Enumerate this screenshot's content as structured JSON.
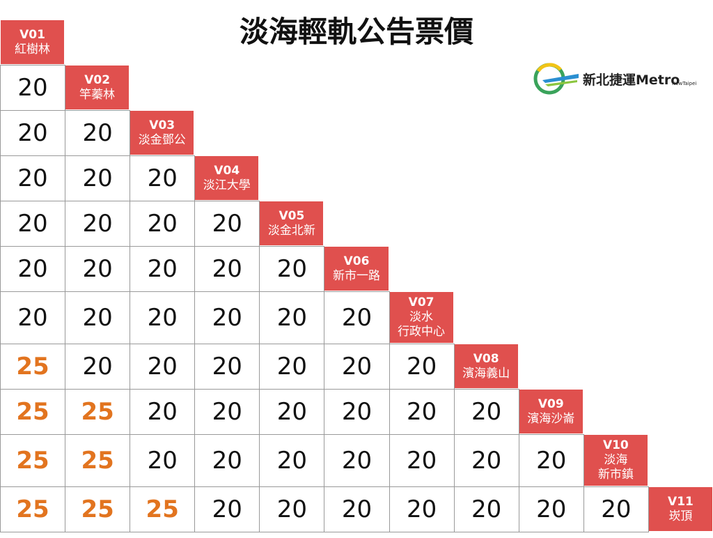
{
  "title": "淡海輕軌公告票價",
  "logo": {
    "brand": "新北捷運Metro",
    "sub": "NewTaipei"
  },
  "stations": [
    {
      "code": "V01",
      "name": [
        "紅樹林"
      ]
    },
    {
      "code": "V02",
      "name": [
        "竿蓁林"
      ]
    },
    {
      "code": "V03",
      "name": [
        "淡金鄧公"
      ]
    },
    {
      "code": "V04",
      "name": [
        "淡江大學"
      ]
    },
    {
      "code": "V05",
      "name": [
        "淡金北新"
      ]
    },
    {
      "code": "V06",
      "name": [
        "新市一路"
      ]
    },
    {
      "code": "V07",
      "name": [
        "淡水",
        "行政中心"
      ]
    },
    {
      "code": "V08",
      "name": [
        "濱海義山"
      ]
    },
    {
      "code": "V09",
      "name": [
        "濱海沙崙"
      ]
    },
    {
      "code": "V10",
      "name": [
        "淡海",
        "新市鎮"
      ]
    },
    {
      "code": "V11",
      "name": [
        "崁頂"
      ]
    }
  ],
  "fares": [
    [
      20
    ],
    [
      20,
      20
    ],
    [
      20,
      20,
      20
    ],
    [
      20,
      20,
      20,
      20
    ],
    [
      20,
      20,
      20,
      20,
      20
    ],
    [
      20,
      20,
      20,
      20,
      20,
      20
    ],
    [
      25,
      20,
      20,
      20,
      20,
      20,
      20
    ],
    [
      25,
      25,
      20,
      20,
      20,
      20,
      20,
      20
    ],
    [
      25,
      25,
      20,
      20,
      20,
      20,
      20,
      20,
      20
    ],
    [
      25,
      25,
      25,
      20,
      20,
      20,
      20,
      20,
      20,
      20
    ]
  ]
}
